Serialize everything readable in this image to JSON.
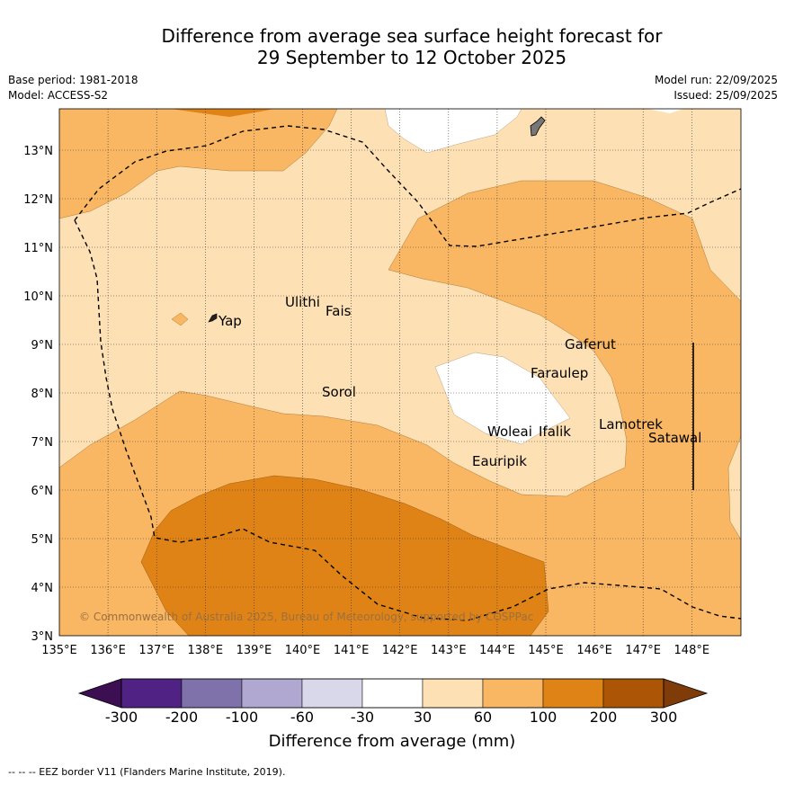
{
  "title": {
    "line1": "Difference from average sea surface height forecast for",
    "line2": "29 September to 12 October 2025"
  },
  "meta": {
    "base_period": "Base period: 1981-2018",
    "model": "Model: ACCESS-S2",
    "model_run": "Model run: 22/09/2025",
    "issued": "Issued: 25/09/2025"
  },
  "map": {
    "lon_labels": [
      "135°E",
      "136°E",
      "137°E",
      "138°E",
      "139°E",
      "140°E",
      "141°E",
      "142°E",
      "143°E",
      "144°E",
      "145°E",
      "146°E",
      "147°E",
      "148°E"
    ],
    "lat_labels": [
      "3°N",
      "4°N",
      "5°N",
      "6°N",
      "7°N",
      "8°N",
      "9°N",
      "10°N",
      "11°N",
      "12°N",
      "13°N"
    ],
    "places": [
      "Yap",
      "Ulithi",
      "Fais",
      "Sorol",
      "Gaferut",
      "Faraulep",
      "Woleai",
      "Ifalik",
      "Lamotrek",
      "Satawal",
      "Eauripik"
    ],
    "copyright": "© Commonwealth of Australia 2025, Bureau of Meteorology, supported by COSPPac"
  },
  "legend": {
    "ticks": [
      "-300",
      "-200",
      "-100",
      "-60",
      "-30",
      "30",
      "60",
      "100",
      "200",
      "300"
    ],
    "label": "Difference from average (mm)",
    "colors": [
      "#3b0f52",
      "#4f2283",
      "#7f71aa",
      "#b0a8d1",
      "#d9d8ea",
      "#ffffff",
      "#fde0b4",
      "#f9b764",
      "#e08316",
      "#ad5506",
      "#7f3b08"
    ]
  },
  "footer": "--  --  -- EEZ border V11 (Flanders Marine Institute, 2019)."
}
